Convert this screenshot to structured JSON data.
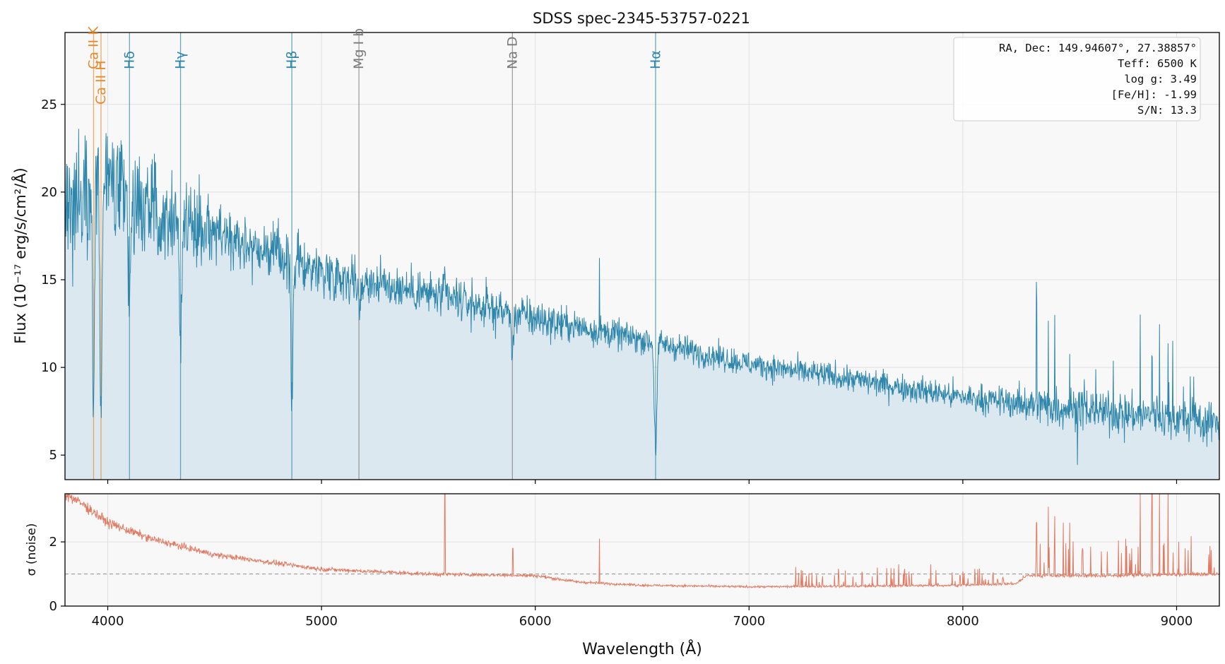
{
  "chart_data": {
    "type": "line",
    "title": "SDSS spec-2345-53757-0221",
    "xlabel": "Wavelength (Å)",
    "xlim": [
      3800,
      9200
    ],
    "xticks": [
      4000,
      5000,
      6000,
      7000,
      8000,
      9000
    ],
    "colors": {
      "flux": "#2e86ab",
      "flux_fill": "#dce8ef",
      "noise": "#e07b63",
      "balmer": "#2e86ab",
      "metal": "#7a7a7a",
      "calcium": "#e8892a",
      "panel_bg": "#f8f8f8",
      "grid": "#e0e0e0",
      "reference": "#999999"
    },
    "flux_panel": {
      "ylabel": "Flux (10⁻¹⁷ erg/s/cm²/Å)",
      "ylim": [
        3.6,
        29.1
      ],
      "yticks": [
        5,
        10,
        15,
        20,
        25
      ],
      "continuum_anchors": [
        [
          3800,
          19.0
        ],
        [
          3950,
          21.0
        ],
        [
          4100,
          19.5
        ],
        [
          4500,
          17.8
        ],
        [
          5000,
          15.5
        ],
        [
          5500,
          14.2
        ],
        [
          6000,
          12.8
        ],
        [
          6500,
          11.6
        ],
        [
          7000,
          10.2
        ],
        [
          7500,
          9.3
        ],
        [
          8000,
          8.3
        ],
        [
          8500,
          7.7
        ],
        [
          9000,
          7.1
        ],
        [
          9200,
          6.8
        ]
      ],
      "absorption_lines": [
        [
          3933.7,
          12.0,
          5
        ],
        [
          3968.5,
          13.0,
          5
        ],
        [
          4101.7,
          6.0,
          5
        ],
        [
          4340.5,
          7.5,
          5
        ],
        [
          4861.3,
          8.0,
          5
        ],
        [
          5175.0,
          1.5,
          8
        ],
        [
          5893.0,
          3.0,
          4
        ],
        [
          6562.8,
          6.0,
          6
        ]
      ],
      "emission_spikes": [
        [
          5577,
          1.2
        ],
        [
          6300,
          4.0
        ],
        [
          8345,
          6.0
        ],
        [
          8400,
          4.5
        ],
        [
          8430,
          5.5
        ],
        [
          8500,
          3.0
        ],
        [
          8830,
          5.0
        ],
        [
          8885,
          4.0
        ],
        [
          8920,
          5.5
        ],
        [
          8960,
          3.5
        ]
      ]
    },
    "noise_panel": {
      "ylabel": "σ (noise)",
      "ylim": [
        0,
        3.5
      ],
      "yticks": [
        0,
        2
      ],
      "reference_level": 1.0,
      "noise_anchors": [
        [
          3800,
          3.5
        ],
        [
          3900,
          3.1
        ],
        [
          4000,
          2.6
        ],
        [
          4200,
          2.1
        ],
        [
          4500,
          1.6
        ],
        [
          5000,
          1.15
        ],
        [
          5500,
          1.0
        ],
        [
          6000,
          0.95
        ],
        [
          6200,
          0.75
        ],
        [
          6500,
          0.65
        ],
        [
          7000,
          0.6
        ],
        [
          7500,
          0.62
        ],
        [
          8000,
          0.65
        ],
        [
          8250,
          0.7
        ],
        [
          8300,
          0.95
        ],
        [
          8700,
          0.95
        ],
        [
          9200,
          1.0
        ]
      ],
      "spikes": [
        [
          5577,
          3.5
        ],
        [
          5895,
          1.8
        ],
        [
          6300,
          2.1
        ],
        [
          7250,
          1.1
        ],
        [
          7600,
          1.2
        ],
        [
          7700,
          1.3
        ],
        [
          7850,
          1.3
        ],
        [
          8345,
          2.6
        ],
        [
          8400,
          3.1
        ],
        [
          8430,
          2.8
        ],
        [
          8470,
          2.6
        ],
        [
          8500,
          2.6
        ],
        [
          8560,
          1.8
        ],
        [
          8830,
          3.5
        ],
        [
          8885,
          3.5
        ],
        [
          8920,
          3.5
        ],
        [
          8960,
          3.5
        ],
        [
          9040,
          1.8
        ],
        [
          9150,
          1.6
        ]
      ]
    },
    "spectral_lines": [
      {
        "label": "Ca II K",
        "wavelength": 3933.7,
        "group": "calcium"
      },
      {
        "label": "Ca II H",
        "wavelength": 3968.5,
        "group": "calcium"
      },
      {
        "label": "Hδ",
        "wavelength": 4101.7,
        "group": "balmer"
      },
      {
        "label": "Hγ",
        "wavelength": 4340.5,
        "group": "balmer"
      },
      {
        "label": "Hβ",
        "wavelength": 4861.3,
        "group": "balmer"
      },
      {
        "label": "Mg I b",
        "wavelength": 5175.0,
        "group": "metal"
      },
      {
        "label": "Na D",
        "wavelength": 5893.0,
        "group": "metal"
      },
      {
        "label": "Hα",
        "wavelength": 6562.8,
        "group": "balmer"
      }
    ],
    "info_box": [
      "RA, Dec: 149.94607°, 27.38857°",
      "Teff: 6500 K",
      "log g: 3.49",
      "[Fe/H]: -1.99",
      "S/N: 13.3"
    ]
  }
}
